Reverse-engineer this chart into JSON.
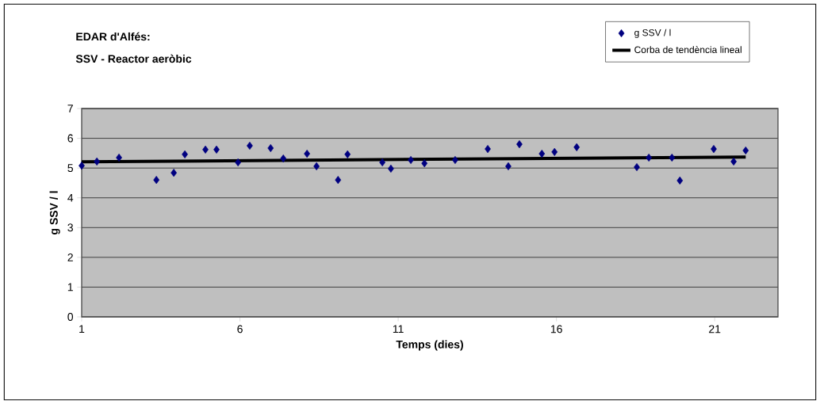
{
  "chart_data": {
    "type": "scatter",
    "title": "EDAR d'Alfés:",
    "subtitle": "SSV - Reactor aeròbic",
    "xlabel": "Temps (dies)",
    "ylabel": "g SSV / l",
    "xlim": [
      1,
      23
    ],
    "ylim": [
      0,
      7
    ],
    "xticks": [
      1,
      6,
      11,
      16,
      21
    ],
    "yticks": [
      0,
      1,
      2,
      3,
      4,
      5,
      6,
      7
    ],
    "grid": "y",
    "legend": "top right",
    "series": [
      {
        "name": "g SSV / l",
        "marker": "diamond",
        "color": "#000080",
        "x": [
          1.0,
          1.48,
          2.18,
          3.36,
          3.91,
          4.26,
          4.91,
          5.26,
          5.94,
          6.31,
          6.97,
          7.37,
          8.12,
          8.42,
          9.1,
          9.4,
          10.5,
          10.77,
          11.4,
          11.83,
          12.8,
          13.83,
          14.48,
          14.83,
          15.54,
          15.94,
          16.64,
          18.54,
          18.92,
          19.65,
          19.9,
          20.97,
          21.6,
          21.98
        ],
        "values": [
          5.08,
          5.22,
          5.35,
          4.6,
          4.84,
          5.46,
          5.62,
          5.62,
          5.19,
          5.75,
          5.67,
          5.32,
          5.48,
          5.06,
          4.6,
          5.46,
          5.19,
          4.98,
          5.27,
          5.16,
          5.27,
          5.64,
          5.06,
          5.8,
          5.48,
          5.54,
          5.7,
          5.03,
          5.35,
          5.35,
          4.58,
          5.64,
          5.22,
          5.59
        ]
      },
      {
        "name": "Corba de tendència lineal",
        "type": "line",
        "marker": "none",
        "line_style": "solid",
        "color": "#000000",
        "x": [
          1.0,
          21.98
        ],
        "values": [
          5.21,
          5.37
        ]
      }
    ]
  }
}
